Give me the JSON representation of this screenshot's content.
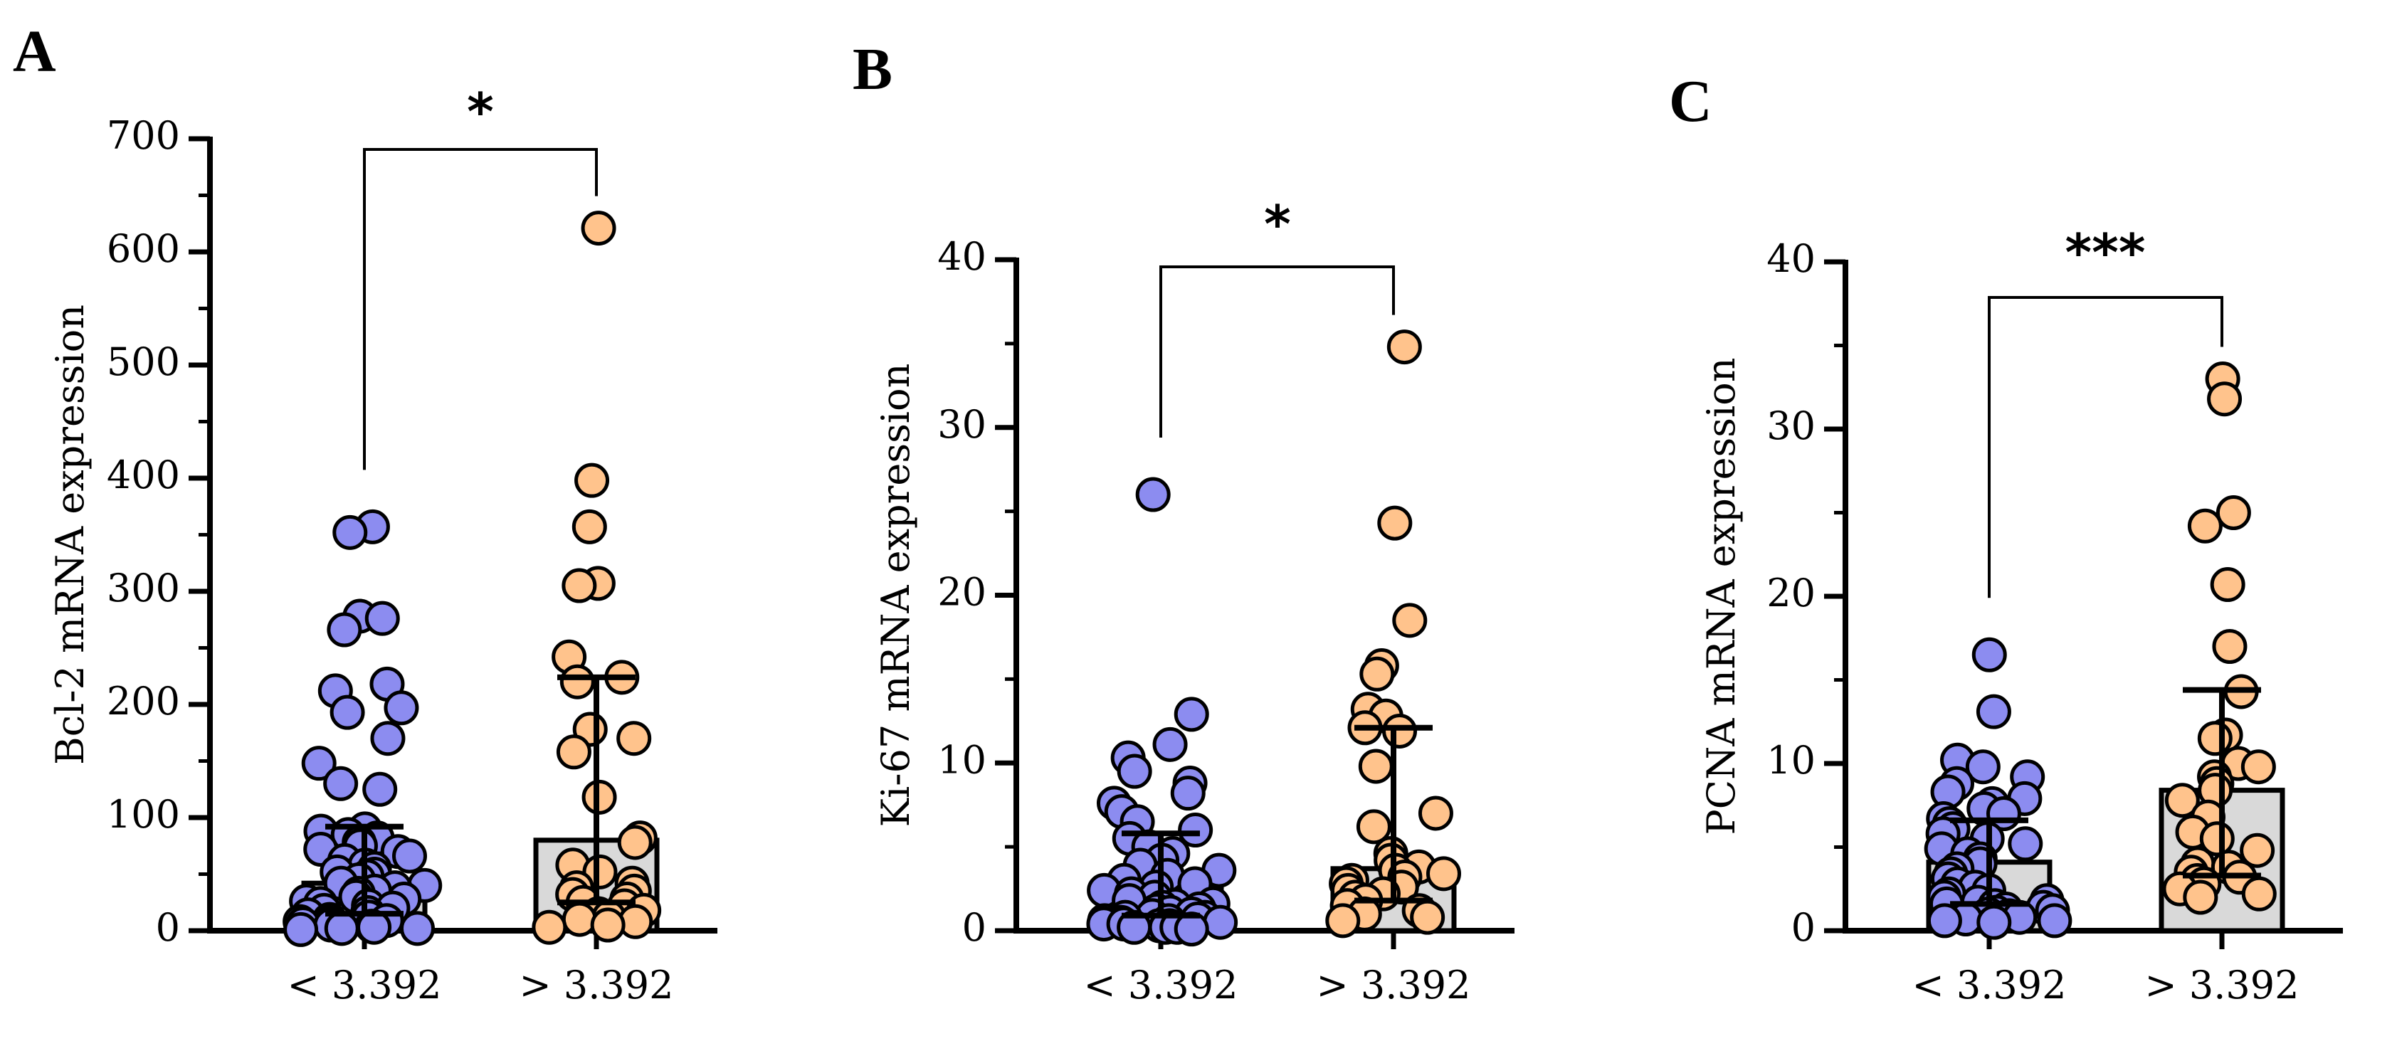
{
  "colors": {
    "low_group": "#8c8cf0",
    "high_group": "#ffc38c",
    "bar_fill": "#d9d9d9",
    "axis": "#000000"
  },
  "chart_data": [
    {
      "panel": "A",
      "type": "bar",
      "title": "",
      "xlabel": "",
      "ylabel": "Bcl-2 mRNA expression",
      "ylim": [
        0,
        700
      ],
      "yticks": [
        "0",
        "100",
        "200",
        "300",
        "400",
        "500",
        "600",
        "700"
      ],
      "categories": [
        "< 3.392",
        "> 3.392"
      ],
      "series": [
        {
          "name": "< 3.392",
          "median": 42,
          "q1": 15,
          "q3": 92,
          "points": [
            357,
            352,
            278,
            276,
            266,
            218,
            212,
            197,
            193,
            170,
            148,
            130,
            125,
            90,
            88,
            85,
            82,
            78,
            75,
            72,
            70,
            66,
            62,
            58,
            55,
            52,
            50,
            48,
            45,
            42,
            40,
            38,
            35,
            33,
            30,
            28,
            26,
            24,
            22,
            20,
            18,
            16,
            14,
            12,
            10,
            9,
            8,
            7,
            6,
            5,
            4,
            3,
            2,
            2,
            1
          ]
        },
        {
          "name": "> 3.392",
          "median": 80,
          "q1": 25,
          "q3": 224,
          "points": [
            621,
            398,
            357,
            307,
            305,
            242,
            224,
            220,
            178,
            170,
            158,
            118,
            82,
            78,
            58,
            52,
            42,
            38,
            35,
            32,
            28,
            25,
            22,
            18,
            15,
            12,
            10,
            8,
            5,
            3
          ]
        }
      ],
      "significance": {
        "label": "*",
        "level": 660
      }
    },
    {
      "panel": "B",
      "type": "bar",
      "title": "",
      "xlabel": "",
      "ylabel": "Ki-67 mRNA expression",
      "ylim": [
        0,
        40
      ],
      "yticks": [
        "0",
        "10",
        "20",
        "30",
        "40"
      ],
      "categories": [
        "< 3.392",
        "> 3.392"
      ],
      "series": [
        {
          "name": "< 3.392",
          "median": 2.5,
          "q1": 0.9,
          "q3": 5.8,
          "points": [
            26,
            12.9,
            11.1,
            10.3,
            9.5,
            8.8,
            8.2,
            7.6,
            7.1,
            6.5,
            6.0,
            5.5,
            5.0,
            4.6,
            4.2,
            3.9,
            3.6,
            3.3,
            3.0,
            2.8,
            2.6,
            2.4,
            2.2,
            2.0,
            1.8,
            1.6,
            1.5,
            1.4,
            1.3,
            1.2,
            1.1,
            1.0,
            0.9,
            0.8,
            0.8,
            0.7,
            0.6,
            0.6,
            0.5,
            0.5,
            0.4,
            0.4,
            0.3,
            0.3,
            0.2,
            0.2,
            0.2,
            0.1
          ]
        },
        {
          "name": "> 3.392",
          "median": 3.7,
          "q1": 1.8,
          "q3": 12.1,
          "points": [
            34.8,
            24.3,
            18.5,
            15.8,
            15.3,
            13.2,
            12.8,
            12.1,
            11.9,
            9.8,
            7.0,
            6.2,
            4.6,
            4.2,
            3.8,
            3.6,
            3.4,
            3.2,
            3.0,
            2.8,
            2.6,
            2.4,
            2.2,
            2.0,
            1.8,
            1.5,
            1.2,
            1.0,
            0.8,
            0.6
          ]
        }
      ],
      "significance": {
        "label": "*",
        "level": 39.5
      }
    },
    {
      "panel": "C",
      "type": "bar",
      "title": "",
      "xlabel": "",
      "ylabel": "PCNA mRNA expression",
      "ylim": [
        0,
        40
      ],
      "yticks": [
        "0",
        "10",
        "20",
        "30",
        "40"
      ],
      "categories": [
        "< 3.392",
        "> 3.392"
      ],
      "series": [
        {
          "name": "< 3.392",
          "median": 4.1,
          "q1": 1.6,
          "q3": 6.6,
          "points": [
            16.5,
            13.1,
            10.2,
            9.8,
            9.2,
            8.8,
            8.3,
            7.9,
            7.6,
            7.3,
            7.0,
            6.7,
            6.4,
            6.1,
            5.8,
            5.5,
            5.2,
            4.9,
            4.6,
            4.3,
            4.0,
            3.7,
            3.4,
            3.1,
            2.8,
            2.6,
            2.4,
            2.2,
            2.0,
            1.8,
            1.7,
            1.6,
            1.5,
            1.4,
            1.3,
            1.2,
            1.1,
            1.0,
            0.9,
            0.8,
            0.7,
            0.6,
            0.6,
            0.5
          ]
        },
        {
          "name": "> 3.392",
          "median": 8.4,
          "q1": 3.3,
          "q3": 14.4,
          "points": [
            33.0,
            31.8,
            25.0,
            24.2,
            20.7,
            17.0,
            14.3,
            11.7,
            11.5,
            10.0,
            9.8,
            9.2,
            8.8,
            8.4,
            7.8,
            6.8,
            5.9,
            5.5,
            4.8,
            4.0,
            3.8,
            3.5,
            3.2,
            3.0,
            2.8,
            2.5,
            2.2,
            2.0
          ]
        }
      ],
      "significance": {
        "label": "***",
        "level": 39.5
      }
    }
  ]
}
